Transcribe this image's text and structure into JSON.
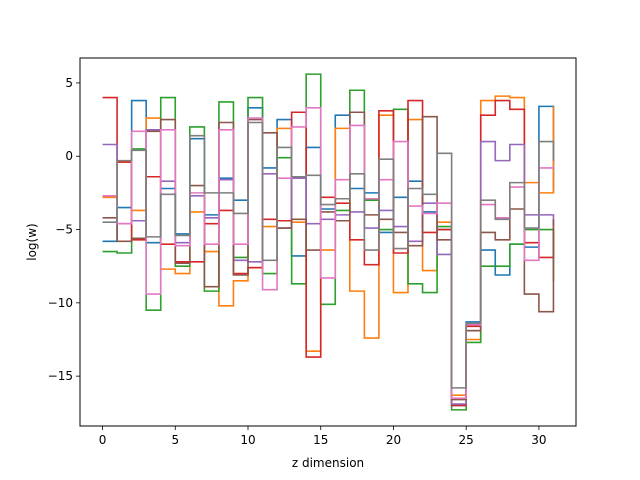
{
  "chart_data": {
    "type": "line",
    "step": "post",
    "xlabel": "z dimension",
    "ylabel": "log(w)",
    "xlim": [
      -1.55,
      32.55
    ],
    "ylim": [
      -18.4,
      6.7
    ],
    "xticks": [
      0,
      5,
      10,
      15,
      20,
      25,
      30
    ],
    "yticks": [
      -15,
      -10,
      -5,
      0,
      5
    ],
    "grid": false,
    "x": [
      0,
      1,
      2,
      3,
      4,
      5,
      6,
      7,
      8,
      9,
      10,
      11,
      12,
      13,
      14,
      15,
      16,
      17,
      18,
      19,
      20,
      21,
      22,
      23,
      24,
      25,
      26,
      27,
      28,
      29,
      30,
      31
    ],
    "series": [
      {
        "color": "#1f77b4",
        "values": [
          -5.8,
          -3.5,
          3.8,
          -5.9,
          -2.2,
          -5.3,
          1.2,
          -4.0,
          -1.5,
          -3.0,
          3.3,
          -0.8,
          2.5,
          -6.8,
          0.6,
          -3.6,
          2.8,
          -2.2,
          -2.5,
          -5.2,
          -2.8,
          -1.7,
          -3.8,
          -5.0,
          -17.0,
          -11.3,
          -6.4,
          -8.1,
          -6.0,
          -6.2,
          3.4,
          -2.4
        ]
      },
      {
        "color": "#ff7f0e",
        "values": [
          -2.8,
          -0.4,
          -3.7,
          2.6,
          -7.7,
          -8.0,
          -3.8,
          -6.5,
          -10.2,
          -8.5,
          -7.6,
          -4.8,
          1.9,
          -4.5,
          -13.3,
          -6.4,
          1.9,
          -9.2,
          -12.4,
          2.8,
          -9.3,
          2.5,
          -7.8,
          -4.5,
          -16.3,
          -12.5,
          3.8,
          4.1,
          4.0,
          -1.8,
          -2.5,
          3.4
        ]
      },
      {
        "color": "#2ca02c",
        "values": [
          -6.5,
          -6.6,
          0.5,
          -10.5,
          4.0,
          -7.5,
          2.0,
          -9.2,
          3.7,
          -6.9,
          4.0,
          -8.0,
          -0.1,
          -8.7,
          5.6,
          -10.1,
          -3.7,
          4.5,
          -3.0,
          -5.0,
          3.2,
          -8.7,
          -9.3,
          -4.8,
          -17.3,
          -12.7,
          -7.5,
          -7.5,
          -6.0,
          -5.0,
          -5.0,
          -8.5
        ]
      },
      {
        "color": "#d62728",
        "values": [
          4.0,
          -0.4,
          -5.7,
          -1.4,
          -6.0,
          -7.2,
          -7.2,
          -4.6,
          -3.7,
          -8.0,
          -7.6,
          -4.3,
          -4.4,
          3.0,
          -13.7,
          -2.8,
          -3.2,
          -5.7,
          -7.4,
          3.1,
          -6.6,
          3.8,
          -5.2,
          -5.0,
          -17.0,
          -11.6,
          2.8,
          3.8,
          3.2,
          -5.9,
          -6.9,
          -4.9
        ]
      },
      {
        "color": "#9467bd",
        "values": [
          0.8,
          -4.6,
          -4.4,
          1.8,
          -1.7,
          -5.9,
          -2.7,
          -4.2,
          -1.6,
          -7.1,
          -7.2,
          -1.2,
          -4.9,
          -1.5,
          -4.6,
          -4.3,
          -4.0,
          -3.8,
          -4.9,
          -3.7,
          -4.8,
          -5.8,
          -3.2,
          -6.7,
          -16.9,
          -11.9,
          1.0,
          -0.3,
          0.8,
          -4.0,
          -4.0,
          -4.8
        ]
      },
      {
        "color": "#8c564b",
        "values": [
          -4.2,
          -5.8,
          -5.6,
          1.7,
          2.5,
          -7.3,
          -2.0,
          -8.9,
          2.3,
          -8.1,
          2.5,
          1.6,
          -4.9,
          -4.3,
          -6.4,
          -3.8,
          -4.4,
          3.0,
          -4.0,
          -4.3,
          -5.2,
          -6.1,
          2.7,
          -5.7,
          -16.6,
          -11.9,
          -5.2,
          -5.7,
          -3.6,
          -9.4,
          -10.6,
          -4.3
        ]
      },
      {
        "color": "#e377c2",
        "values": [
          -2.7,
          -4.6,
          1.7,
          -9.4,
          1.8,
          -6.1,
          -2.5,
          -6.0,
          1.8,
          -6.0,
          2.6,
          -9.1,
          -1.5,
          2.0,
          3.3,
          -8.3,
          -1.6,
          2.1,
          -2.9,
          -1.6,
          1.0,
          -3.4,
          -3.9,
          -3.2,
          -16.5,
          -11.5,
          -3.3,
          -4.2,
          -2.1,
          -7.1,
          -0.8,
          -0.7
        ]
      },
      {
        "color": "#7f7f7f",
        "values": [
          -4.5,
          -0.3,
          0.4,
          -5.5,
          -2.6,
          -5.4,
          1.4,
          -2.5,
          -2.5,
          -3.9,
          2.3,
          -7.1,
          0.6,
          -1.4,
          -1.3,
          -3.3,
          -2.9,
          -1.2,
          -6.4,
          -0.2,
          -6.3,
          -2.2,
          -2.6,
          0.2,
          -15.8,
          -11.4,
          -3.0,
          -4.3,
          -1.8,
          -4.9,
          1.0,
          -0.3
        ]
      }
    ]
  }
}
